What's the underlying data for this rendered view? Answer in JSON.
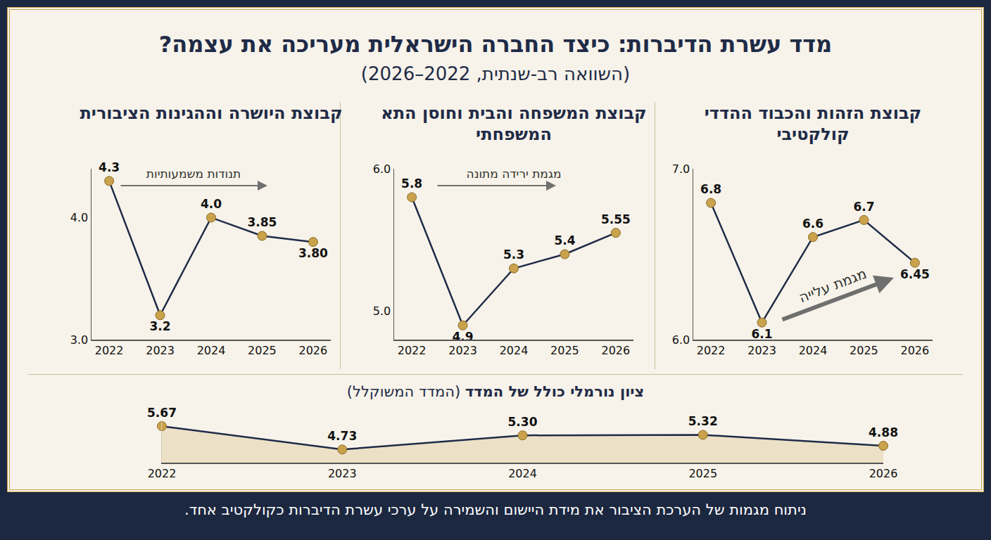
{
  "title": "מדד עשרת הדיברות: כיצד החברה הישראלית מעריכה את עצמה?",
  "subtitle": "(השוואה רב-שנתית, 2022–2026)",
  "footer": "ניתוח מגמות של הערכת הציבור את מידת היישום והשמירה על ערכי עשרת הדיברות כקולקטיב אחד.",
  "chart_data": [
    {
      "type": "line",
      "title": "קבוצת הזהות והכבוד ההדדי קולקטיבי",
      "annotations": [
        "מגמת עלייה"
      ],
      "categories": [
        "2022",
        "2023",
        "2024",
        "2025",
        "2026"
      ],
      "values": [
        6.8,
        6.1,
        6.6,
        6.7,
        6.45
      ],
      "value_labels": [
        "6.8",
        "6.1",
        "6.6",
        "6.7",
        "6.45"
      ],
      "ylim": [
        6,
        7
      ],
      "yticks": [
        {
          "value": 6,
          "label": "6.0"
        },
        {
          "value": 7,
          "label": "7.0"
        }
      ],
      "color": "#1f2b47",
      "marker": "circle",
      "data_labels": true,
      "grid": false
    },
    {
      "type": "line",
      "title": "קבוצת המשפחה והבית וחוסן התא המשפחתי",
      "annotations": [
        "מגמת ירידה מתונה"
      ],
      "categories": [
        "2022",
        "2023",
        "2024",
        "2025",
        "2026"
      ],
      "values": [
        5.8,
        4.9,
        5.3,
        5.4,
        5.55
      ],
      "value_labels": [
        "5.8",
        "4.9",
        "5.3",
        "5.4",
        "5.55"
      ],
      "ylim": [
        4.8,
        6
      ],
      "yticks": [
        {
          "value": 5,
          "label": "5.0"
        },
        {
          "value": 6,
          "label": "6.0"
        }
      ],
      "color": "#1f2b47",
      "marker": "circle",
      "data_labels": true,
      "grid": false
    },
    {
      "type": "line",
      "title": "קבוצת היושרה וההגינות הציבורית",
      "annotations": [
        "תנודות משמעותיות"
      ],
      "categories": [
        "2022",
        "2023",
        "2024",
        "2025",
        "2026"
      ],
      "values": [
        4.3,
        3.2,
        4.0,
        3.85,
        3.8
      ],
      "value_labels": [
        "4.3",
        "3.2",
        "4.0",
        "3.85",
        "3.80"
      ],
      "ylim": [
        3,
        4.4
      ],
      "yticks": [
        {
          "value": 3,
          "label": "3.0"
        },
        {
          "value": 4,
          "label": "4.0"
        }
      ],
      "color": "#1f2b47",
      "marker": "circle",
      "data_labels": true,
      "grid": false
    },
    {
      "type": "area",
      "title": "ציון נורמלי כולל של המדד",
      "subtitle": "(המדד המשוקלל)",
      "categories": [
        "2022",
        "2023",
        "2024",
        "2025",
        "2026"
      ],
      "values": [
        5.67,
        4.73,
        5.3,
        5.32,
        4.88
      ],
      "value_labels": [
        "5.67",
        "4.73",
        "5.30",
        "5.32",
        "4.88"
      ],
      "ylim": [
        4.2,
        5.9
      ],
      "tick_labels": "x",
      "color": "#1f2b47",
      "marker": "circle",
      "data_labels": true,
      "grid": false
    }
  ]
}
